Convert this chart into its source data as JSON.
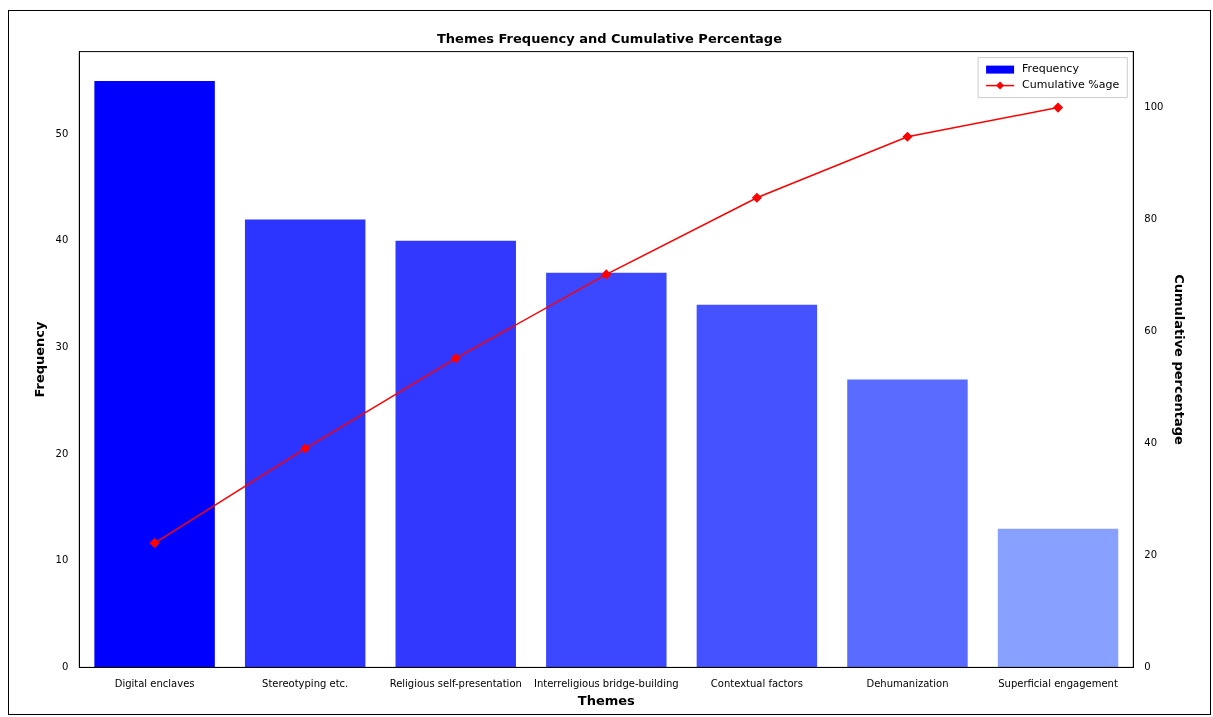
{
  "chart_data": {
    "type": "bar",
    "title": "Themes Frequency and Cumulative Percentage",
    "xlabel": "Themes",
    "ylabel": "Frequency",
    "y2label": "Cumulative percentage",
    "categories": [
      "Digital enclaves",
      "Stereotyping etc.",
      "Religious self-presentation",
      "Interreligious bridge-building",
      "Contextual factors",
      "Dehumanization",
      "Superficial engagement"
    ],
    "series": [
      {
        "name": "Frequency",
        "color": "#0000ff",
        "colors": [
          "#0000ff",
          "#2c34ff",
          "#3338ff",
          "#3c48ff",
          "#4552ff",
          "#5a6cff",
          "#88a0ff"
        ],
        "values": [
          55,
          42,
          40,
          37,
          34,
          27,
          13
        ]
      },
      {
        "name": "Cumulative %age",
        "type": "line",
        "axis": "y2",
        "color": "#ff0000",
        "marker": "diamond",
        "values": [
          22.2,
          39.1,
          55.2,
          70.2,
          83.9,
          94.8,
          100
        ]
      }
    ],
    "ylim": [
      0,
      57.75
    ],
    "yticks": [
      0,
      10,
      20,
      30,
      40,
      50
    ],
    "y2lim": [
      0,
      110
    ],
    "y2ticks": [
      0,
      20,
      40,
      60,
      80,
      100
    ],
    "grid": false,
    "legend": "top right"
  }
}
